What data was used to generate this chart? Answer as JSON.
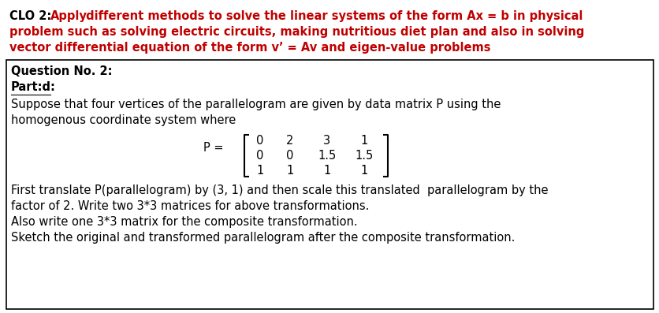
{
  "bg_color": "#ffffff",
  "box_color": "#000000",
  "red_color": "#c00000",
  "black_color": "#000000",
  "header_clo": "CLO 2: ",
  "header_apply": "Apply",
  "header_line1_rest": " different methods to solve the linear systems of the form Ax = b in physical",
  "header_line2": "problem such as solving electric circuits, making nutritious diet plan and also in solving",
  "header_line3": "vector differential equation of the form v’ = Av and eigen-value problems",
  "q_title": "Question No. 2:",
  "part_label": "Part:d:",
  "body1": "Suppose that four vertices of the parallelogram are given by data matrix P using the",
  "body2": "homogenous coordinate system where",
  "matrix_p_label": "P =",
  "matrix_rows": [
    [
      "0",
      "2",
      "3",
      "1"
    ],
    [
      "0",
      "0",
      "1.5",
      "1.5"
    ],
    [
      "1",
      "1",
      "1",
      "1"
    ]
  ],
  "footer1": "First translate P(parallelogram) by (3, 1) and then scale this translated  parallelogram by the",
  "footer2": "factor of 2. Write two 3*3 matrices for above transformations.",
  "footer3": "Also write one 3*3 matrix for the composite transformation.",
  "footer4": "Sketch the original and transformed parallelogram after the composite transformation.",
  "header_fontsize": 10.5,
  "body_fontsize": 10.5,
  "matrix_fontsize": 10.5,
  "bracket_fontsize": 28
}
